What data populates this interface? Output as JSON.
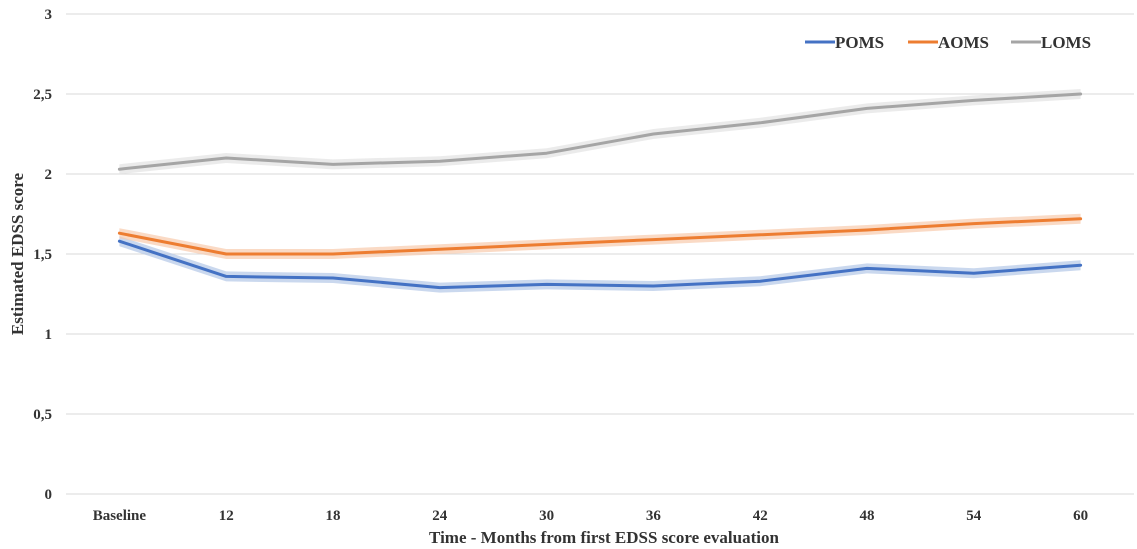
{
  "chart_data": {
    "type": "line",
    "title": "",
    "xlabel": "Time - Months from first EDSS score evaluation",
    "ylabel": "Estimated EDSS score",
    "categories": [
      "Baseline",
      "12",
      "18",
      "24",
      "30",
      "36",
      "42",
      "48",
      "54",
      "60"
    ],
    "ylim": [
      0,
      3
    ],
    "yticks": [
      "0",
      "0,5",
      "1",
      "1,5",
      "2",
      "2,5",
      "3"
    ],
    "grid": true,
    "legend_position": "top-right",
    "series": [
      {
        "name": "POMS",
        "color": "#4472c4",
        "band_color": "#b4c7e7",
        "values": [
          1.58,
          1.36,
          1.35,
          1.29,
          1.31,
          1.3,
          1.33,
          1.41,
          1.38,
          1.43
        ]
      },
      {
        "name": "AOMS",
        "color": "#ed7d31",
        "band_color": "#f8cbad",
        "values": [
          1.63,
          1.5,
          1.5,
          1.53,
          1.56,
          1.59,
          1.62,
          1.65,
          1.69,
          1.72
        ]
      },
      {
        "name": "LOMS",
        "color": "#a5a5a5",
        "band_color": "#e2e2e2",
        "values": [
          2.03,
          2.1,
          2.06,
          2.08,
          2.13,
          2.25,
          2.32,
          2.41,
          2.46,
          2.5
        ]
      }
    ]
  }
}
